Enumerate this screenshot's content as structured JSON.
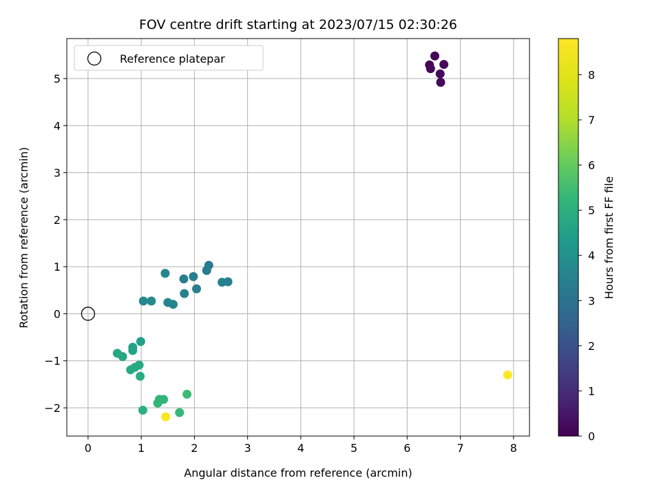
{
  "chart_data": {
    "type": "scatter",
    "title": "FOV centre drift starting at 2023/07/15 02:30:26",
    "xlabel": "Angular distance from reference (arcmin)",
    "ylabel": "Rotation from reference (arcmin)",
    "xlim": [
      -0.4,
      8.3
    ],
    "ylim": [
      -2.6,
      5.85
    ],
    "xticks": [
      "0",
      "1",
      "2",
      "3",
      "4",
      "5",
      "6",
      "7",
      "8"
    ],
    "yticks": [
      "−2",
      "−1",
      "0",
      "1",
      "2",
      "3",
      "4",
      "5"
    ],
    "grid": true,
    "legend": {
      "position": "top-left",
      "entries": [
        "Reference platepar"
      ]
    },
    "reference_point": {
      "x": 0,
      "y": 0
    },
    "colorbar": {
      "label": "Hours from first FF file",
      "min": 0,
      "max": 8.8,
      "ticks": [
        "0",
        "1",
        "2",
        "3",
        "4",
        "5",
        "6",
        "7",
        "8"
      ],
      "colormap": "viridis"
    },
    "points": [
      {
        "x": 6.52,
        "y": 5.48,
        "c": 0.1
      },
      {
        "x": 6.42,
        "y": 5.29,
        "c": 0.1
      },
      {
        "x": 6.44,
        "y": 5.21,
        "c": 0.15
      },
      {
        "x": 6.69,
        "y": 5.3,
        "c": 0.15
      },
      {
        "x": 6.62,
        "y": 5.1,
        "c": 0.2
      },
      {
        "x": 6.63,
        "y": 4.92,
        "c": 0.2
      },
      {
        "x": 1.45,
        "y": 0.86,
        "c": 3.6
      },
      {
        "x": 1.04,
        "y": 0.27,
        "c": 3.7
      },
      {
        "x": 1.19,
        "y": 0.27,
        "c": 3.7
      },
      {
        "x": 1.5,
        "y": 0.24,
        "c": 3.6
      },
      {
        "x": 1.6,
        "y": 0.2,
        "c": 3.6
      },
      {
        "x": 1.81,
        "y": 0.43,
        "c": 3.5
      },
      {
        "x": 1.8,
        "y": 0.74,
        "c": 3.4
      },
      {
        "x": 1.98,
        "y": 0.79,
        "c": 3.4
      },
      {
        "x": 2.04,
        "y": 0.53,
        "c": 3.4
      },
      {
        "x": 2.23,
        "y": 0.92,
        "c": 3.3
      },
      {
        "x": 2.27,
        "y": 1.03,
        "c": 3.3
      },
      {
        "x": 2.52,
        "y": 0.67,
        "c": 3.5
      },
      {
        "x": 2.63,
        "y": 0.68,
        "c": 3.5
      },
      {
        "x": 0.55,
        "y": -0.84,
        "c": 4.7
      },
      {
        "x": 0.65,
        "y": -0.91,
        "c": 4.7
      },
      {
        "x": 0.84,
        "y": -0.71,
        "c": 4.6
      },
      {
        "x": 0.84,
        "y": -0.78,
        "c": 4.6
      },
      {
        "x": 0.99,
        "y": -0.59,
        "c": 4.5
      },
      {
        "x": 0.8,
        "y": -1.19,
        "c": 4.8
      },
      {
        "x": 0.88,
        "y": -1.14,
        "c": 4.8
      },
      {
        "x": 0.96,
        "y": -1.09,
        "c": 4.8
      },
      {
        "x": 0.98,
        "y": -1.33,
        "c": 4.9
      },
      {
        "x": 1.03,
        "y": -2.05,
        "c": 5.0
      },
      {
        "x": 1.31,
        "y": -1.9,
        "c": 5.2
      },
      {
        "x": 1.34,
        "y": -1.82,
        "c": 5.2
      },
      {
        "x": 1.42,
        "y": -1.82,
        "c": 5.2
      },
      {
        "x": 1.72,
        "y": -2.1,
        "c": 5.3
      },
      {
        "x": 1.86,
        "y": -1.71,
        "c": 5.4
      },
      {
        "x": 1.46,
        "y": -2.19,
        "c": 8.7
      },
      {
        "x": 7.89,
        "y": -1.3,
        "c": 8.8
      }
    ]
  }
}
